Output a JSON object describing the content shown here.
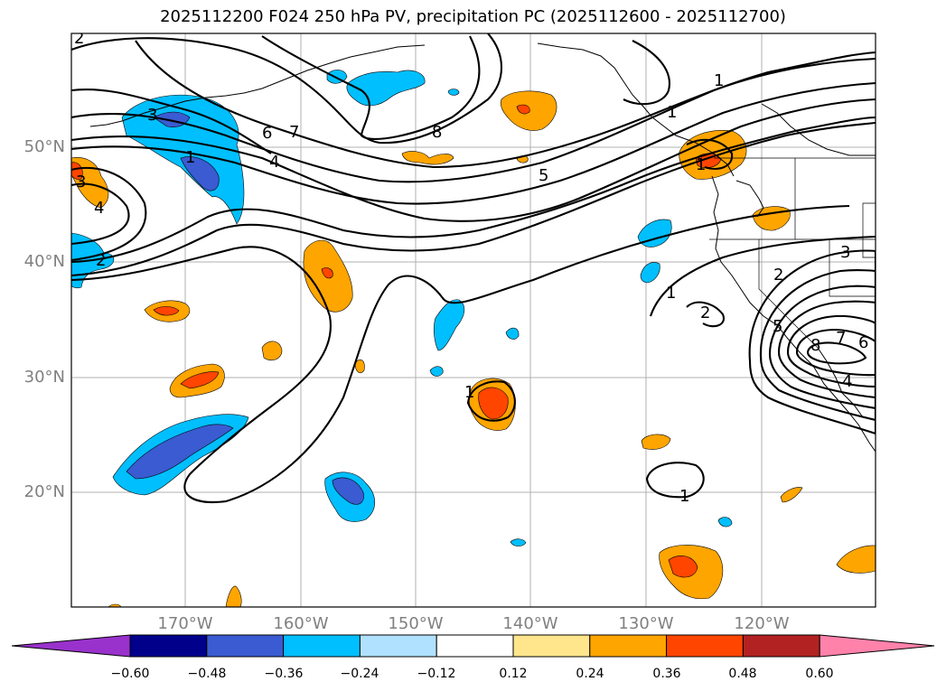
{
  "title": "2025112200 F024 250 hPa PV, precipitation PC (2025112600 - 2025112700)",
  "map": {
    "lat_labels": [
      "50°N",
      "40°N",
      "30°N",
      "20°N"
    ],
    "lon_labels": [
      "170°W",
      "160°W",
      "150°W",
      "140°W",
      "130°W",
      "120°W"
    ],
    "contour_labels": [
      "2",
      "3",
      "1",
      "3",
      "4",
      "2",
      "6",
      "7",
      "4",
      "8",
      "5",
      "1",
      "1",
      "2",
      "3",
      "1",
      "1",
      "5",
      "8",
      "7",
      "6",
      "4",
      "1",
      "1",
      "2"
    ]
  },
  "colorbar": {
    "ticks": [
      "−0.60",
      "−0.48",
      "−0.36",
      "−0.24",
      "−0.12",
      "0.12",
      "0.24",
      "0.36",
      "0.48",
      "0.60"
    ],
    "colors": [
      "#9932cc",
      "#00008b",
      "#3a5bd1",
      "#00bfff",
      "#b0e2ff",
      "#ffffff",
      "#ffe68c",
      "#ffa500",
      "#ff4500",
      "#b22222",
      "#ff82ab"
    ]
  },
  "palette": {
    "neg1": "#00bfff",
    "neg2": "#3a5bd1",
    "neg3": "#00008b",
    "pos1": "#ffa500",
    "pos2": "#ff4500"
  }
}
